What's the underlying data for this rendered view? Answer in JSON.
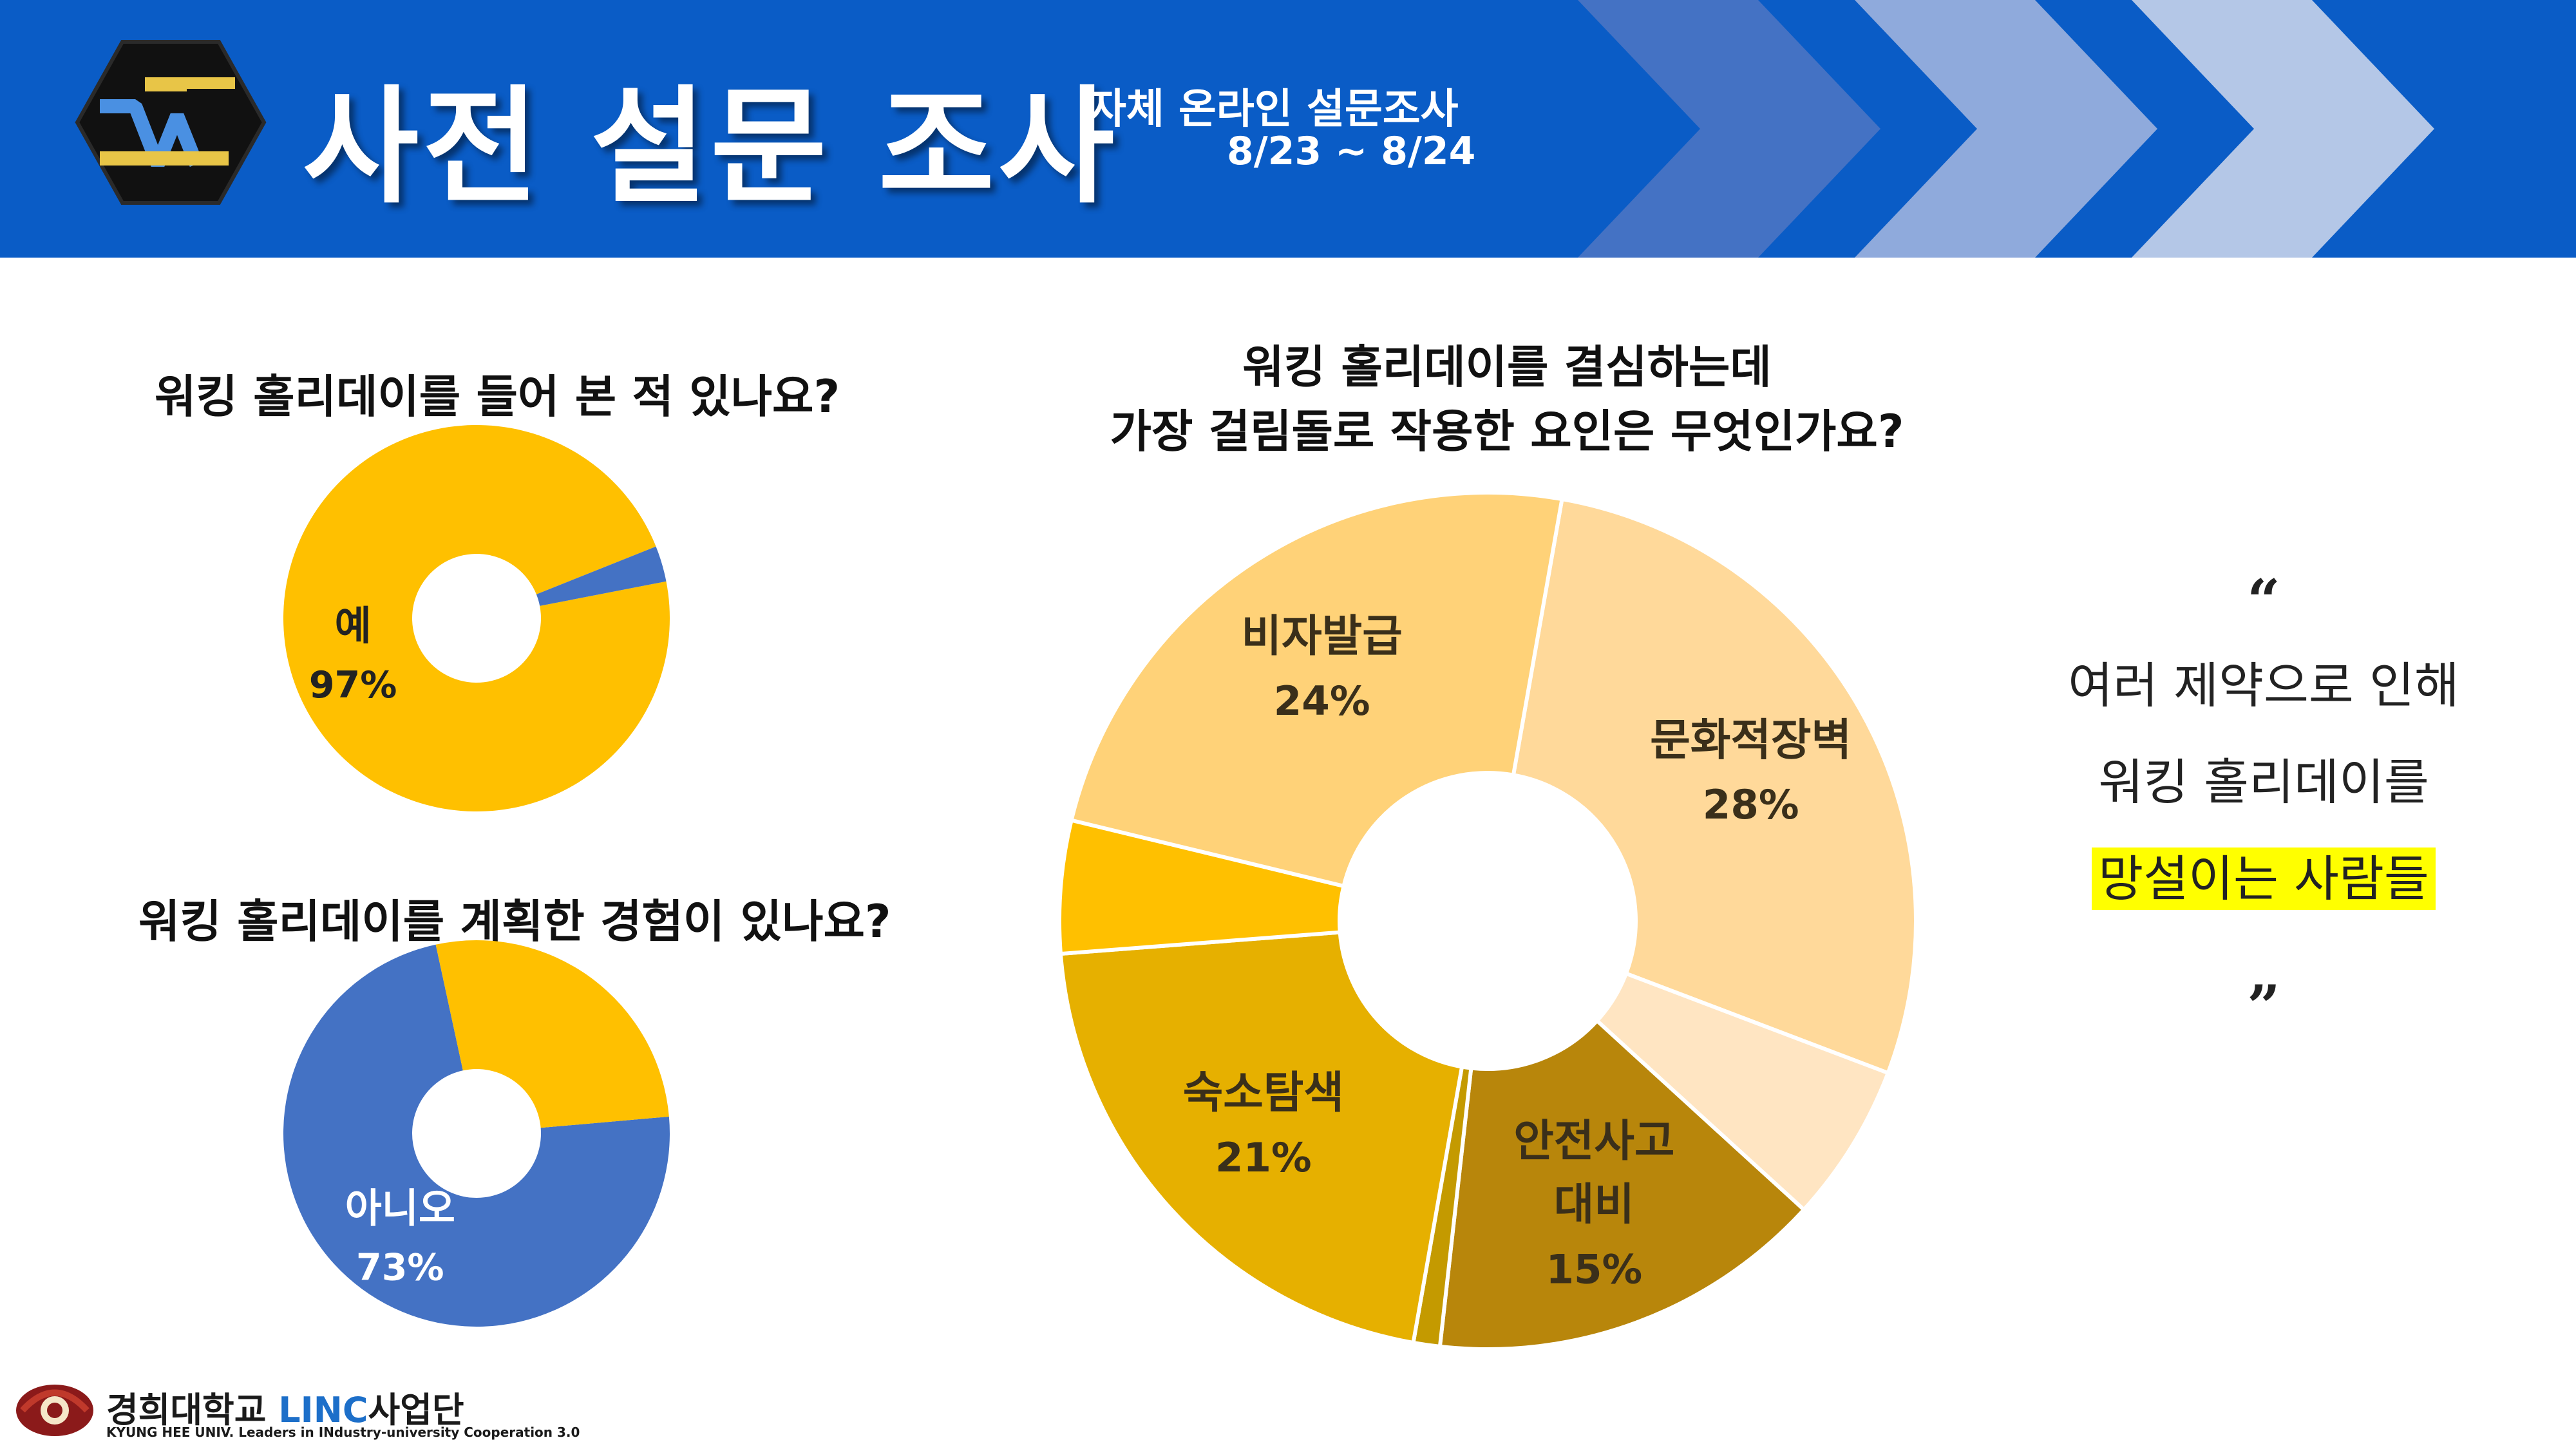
{
  "header": {
    "title": "사전 설문 조사",
    "subtitle_line1": "자체 온라인 설문조사",
    "subtitle_line2": "8/23 ~ 8/24",
    "banner_color": "#0a5cc6",
    "chevron_colors": [
      "#4472c4",
      "#8faadc",
      "#b4c7e7"
    ]
  },
  "chart_data": [
    {
      "type": "pie",
      "title": "워킹 홀리데이를 들어 본 적 있나요?",
      "slices": [
        {
          "label": "예",
          "value": 97,
          "value_label": "97%",
          "color": "#ffc000"
        },
        {
          "label": "",
          "value": 3,
          "value_label": "",
          "color": "#4472c4"
        }
      ]
    },
    {
      "type": "pie",
      "title": "워킹 홀리데이를 계획한 경험이 있나요?",
      "slices": [
        {
          "label": "아니오",
          "value": 73,
          "value_label": "73%",
          "color": "#4472c4"
        },
        {
          "label": "",
          "value": 27,
          "value_label": "",
          "color": "#ffc000"
        }
      ]
    },
    {
      "type": "pie",
      "title": "워킹 홀리데이를 결심하는데\n가장 걸림돌로 작용한 요인은 무엇인가요?",
      "slices": [
        {
          "label": "문화적장벽",
          "value": 28,
          "value_label": "28%",
          "color": "#ffd99a"
        },
        {
          "label": "",
          "value": 6,
          "value_label": "",
          "color": "#ffe5c2"
        },
        {
          "label": "안전사고\n대비",
          "value": 15,
          "value_label": "15%",
          "color": "#b8860b"
        },
        {
          "label": "",
          "value": 1,
          "value_label": "",
          "color": "#c49a00"
        },
        {
          "label": "숙소탐색",
          "value": 21,
          "value_label": "21%",
          "color": "#e6b000"
        },
        {
          "label": "",
          "value": 5,
          "value_label": "",
          "color": "#ffc000"
        },
        {
          "label": "비자발급",
          "value": 24,
          "value_label": "24%",
          "color": "#ffd278"
        }
      ]
    }
  ],
  "quote": {
    "open_mark": "“",
    "line1": "여러 제약으로 인해",
    "line2": "워킹 홀리데이를",
    "line3_highlight": "망설이는 사람들",
    "close_mark": "”",
    "highlight_color": "#ffff00"
  },
  "footer": {
    "university": "경희대학교",
    "linc": "LINC",
    "org": "사업단",
    "sub": "KYUNG HEE UNIV. Leaders in INdustry-university Cooperation 3.0"
  }
}
